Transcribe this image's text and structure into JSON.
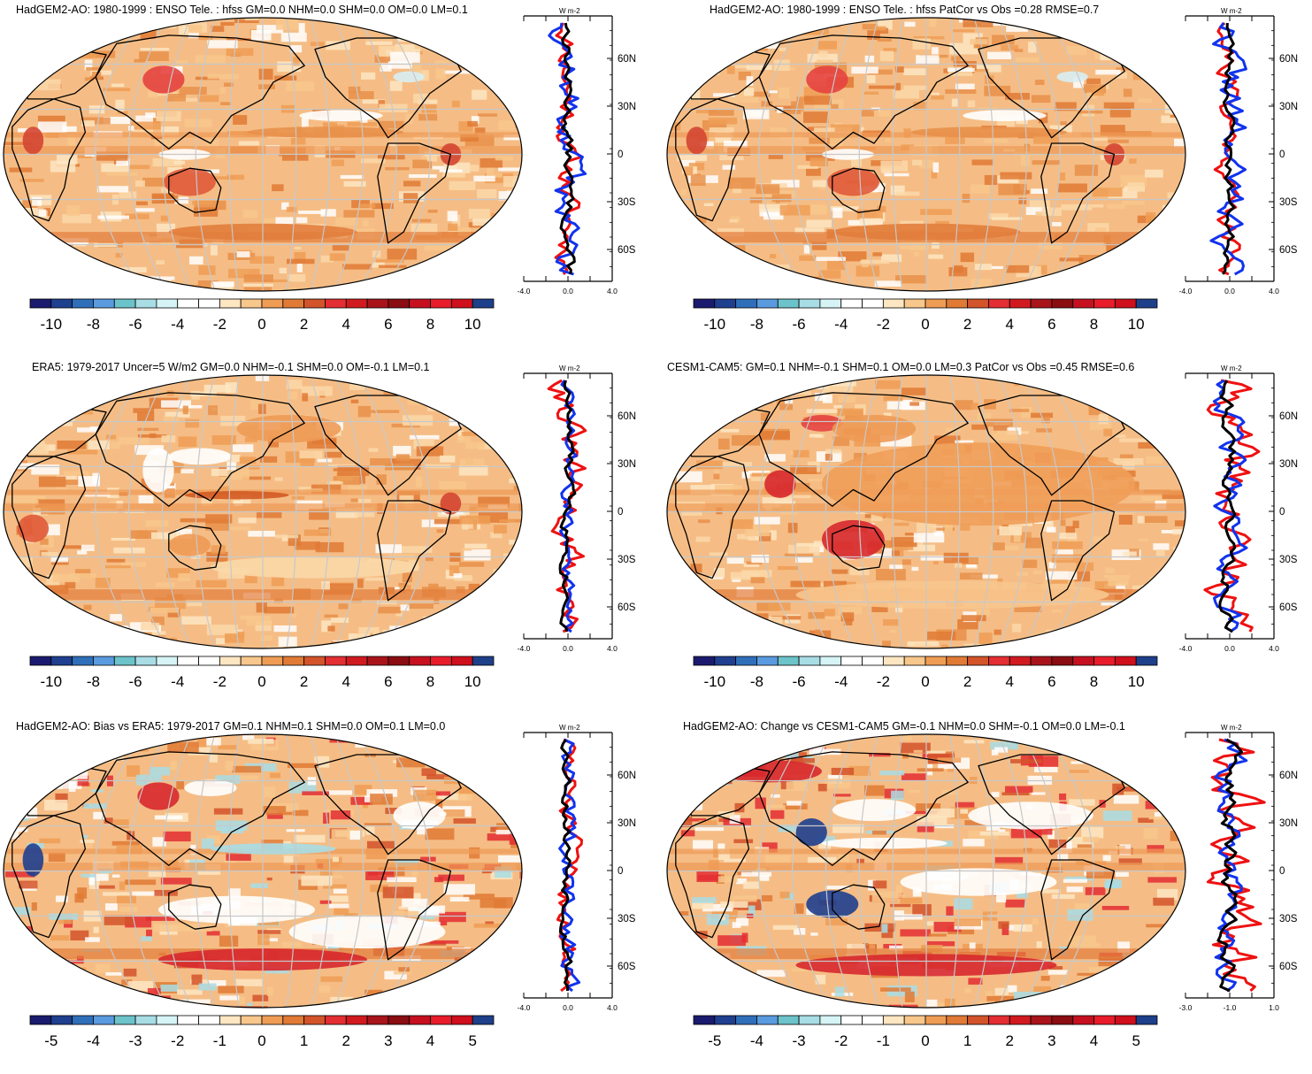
{
  "colorbar_colors_a": [
    "#1a1a6e",
    "#1f3f8f",
    "#2f6fba",
    "#5a9be0",
    "#6cc3c9",
    "#a8dde5",
    "#d6f4f6",
    "#ffffff",
    "#ffffff",
    "#fde6c2",
    "#f8c78b",
    "#ef9d55",
    "#e07a35",
    "#d3542a",
    "#e32e33",
    "#d11a1f",
    "#a8141a",
    "#8a0d12",
    "#c61020",
    "#e81c2a",
    "#cf0f1c",
    "#1e3f8a"
  ],
  "colorbar_colors_b": [
    "#1a1a6e",
    "#1f3f8f",
    "#2f6fba",
    "#5a9be0",
    "#6cc3c9",
    "#a8dde5",
    "#d6f4f6",
    "#ffffff",
    "#ffffff",
    "#fde6c2",
    "#f8c78b",
    "#ef9d55",
    "#e07a35",
    "#d3542a",
    "#e32e33",
    "#d11a1f",
    "#a8141a",
    "#8a0d12",
    "#c61020",
    "#e81c2a",
    "#cf0f1c",
    "#1e3f8a"
  ],
  "colors": {
    "ocean_base": "#f5bd85",
    "land_base": "#f0a265",
    "grid": "#c8c8c8",
    "red_line": "#ee1111",
    "blue_line": "#1133ee",
    "black_line": "#000000"
  },
  "panels": [
    {
      "title": "HadGEM2-AO: 1980-1999 : ENSO Tele. : hfss GM=0.0 NHM=0.0 SHM=0.0 OM=0.0 LM=0.1",
      "profile_unit": "W m-2",
      "lat_ticks": [
        "60N",
        "30N",
        "0",
        "30S",
        "60S"
      ],
      "x_ticks": [
        "-4.0",
        "0.0",
        "4.0"
      ],
      "colorbar_labels": [
        "-10",
        "-8",
        "-6",
        "-4",
        "-2",
        "0",
        "2",
        "4",
        "6",
        "8",
        "10"
      ]
    },
    {
      "title": "HadGEM2-AO: 1980-1999 : ENSO Tele. : hfss PatCor vs Obs =0.28 RMSE=0.7",
      "profile_unit": "W m-2",
      "lat_ticks": [
        "60N",
        "30N",
        "0",
        "30S",
        "60S"
      ],
      "x_ticks": [
        "-4.0",
        "0.0",
        "4.0"
      ],
      "colorbar_labels": [
        "-10",
        "-8",
        "-6",
        "-4",
        "-2",
        "0",
        "2",
        "4",
        "6",
        "8",
        "10"
      ]
    },
    {
      "title": "ERA5: 1979-2017 Uncer=5 W/m2 GM=0.0 NHM=-0.1 SHM=0.0 OM=-0.1 LM=0.1",
      "profile_unit": "W m-2",
      "lat_ticks": [
        "60N",
        "30N",
        "0",
        "30S",
        "60S"
      ],
      "x_ticks": [
        "-4.0",
        "0.0",
        "4.0"
      ],
      "colorbar_labels": [
        "-10",
        "-8",
        "-6",
        "-4",
        "-2",
        "0",
        "2",
        "4",
        "6",
        "8",
        "10"
      ]
    },
    {
      "title": "CESM1-CAM5: GM=0.1 NHM=-0.1 SHM=0.1 OM=0.0 LM=0.3 PatCor vs Obs =0.45 RMSE=0.6",
      "profile_unit": "W m-2",
      "lat_ticks": [
        "60N",
        "30N",
        "0",
        "30S",
        "60S"
      ],
      "x_ticks": [
        "-4.0",
        "0.0",
        "4.0"
      ],
      "colorbar_labels": [
        "-10",
        "-8",
        "-6",
        "-4",
        "-2",
        "0",
        "2",
        "4",
        "6",
        "8",
        "10"
      ]
    },
    {
      "title": "HadGEM2-AO: Bias vs ERA5: 1979-2017 GM=0.1 NHM=0.1 SHM=0.0 OM=0.1 LM=0.0",
      "profile_unit": "W m-2",
      "lat_ticks": [
        "60N",
        "30N",
        "0",
        "30S",
        "60S"
      ],
      "x_ticks": [
        "-4.0",
        "0.0",
        "4.0"
      ],
      "colorbar_labels": [
        "-5",
        "-4",
        "-3",
        "-2",
        "-1",
        "0",
        "1",
        "2",
        "3",
        "4",
        "5"
      ]
    },
    {
      "title": "HadGEM2-AO: Change vs CESM1-CAM5 GM=-0.1 NHM=0.0 SHM=-0.1 OM=0.0 LM=-0.1",
      "profile_unit": "W m-2",
      "lat_ticks": [
        "60N",
        "30N",
        "0",
        "30S",
        "60S"
      ],
      "x_ticks": [
        "-3.0",
        "-1.0",
        "1.0"
      ],
      "colorbar_labels": [
        "-5",
        "-4",
        "-3",
        "-2",
        "-1",
        "0",
        "1",
        "2",
        "3",
        "4",
        "5"
      ]
    }
  ]
}
